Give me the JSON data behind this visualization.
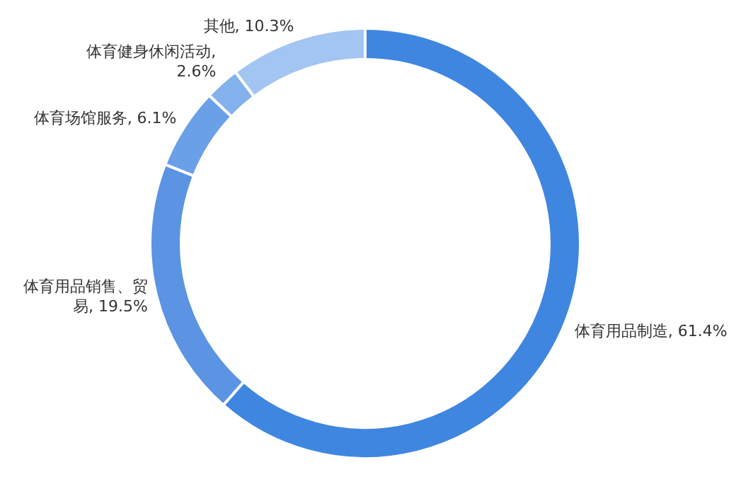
{
  "chart_data": {
    "type": "donut",
    "categories": [
      "体育用品制造",
      "体育用品销售、贸易",
      "体育场馆服务",
      "体育健身休闲活动",
      "其他"
    ],
    "values": [
      61.4,
      19.5,
      6.1,
      2.6,
      10.3
    ],
    "value_labels": [
      ", 61.4%",
      ", 19.5%",
      ", 6.1%",
      ", 2.6%",
      ", 10.3%"
    ],
    "colors": [
      "#3f86e0",
      "#5a94e3",
      "#6aa0e8",
      "#83b1ec",
      "#a2c5f2"
    ]
  }
}
